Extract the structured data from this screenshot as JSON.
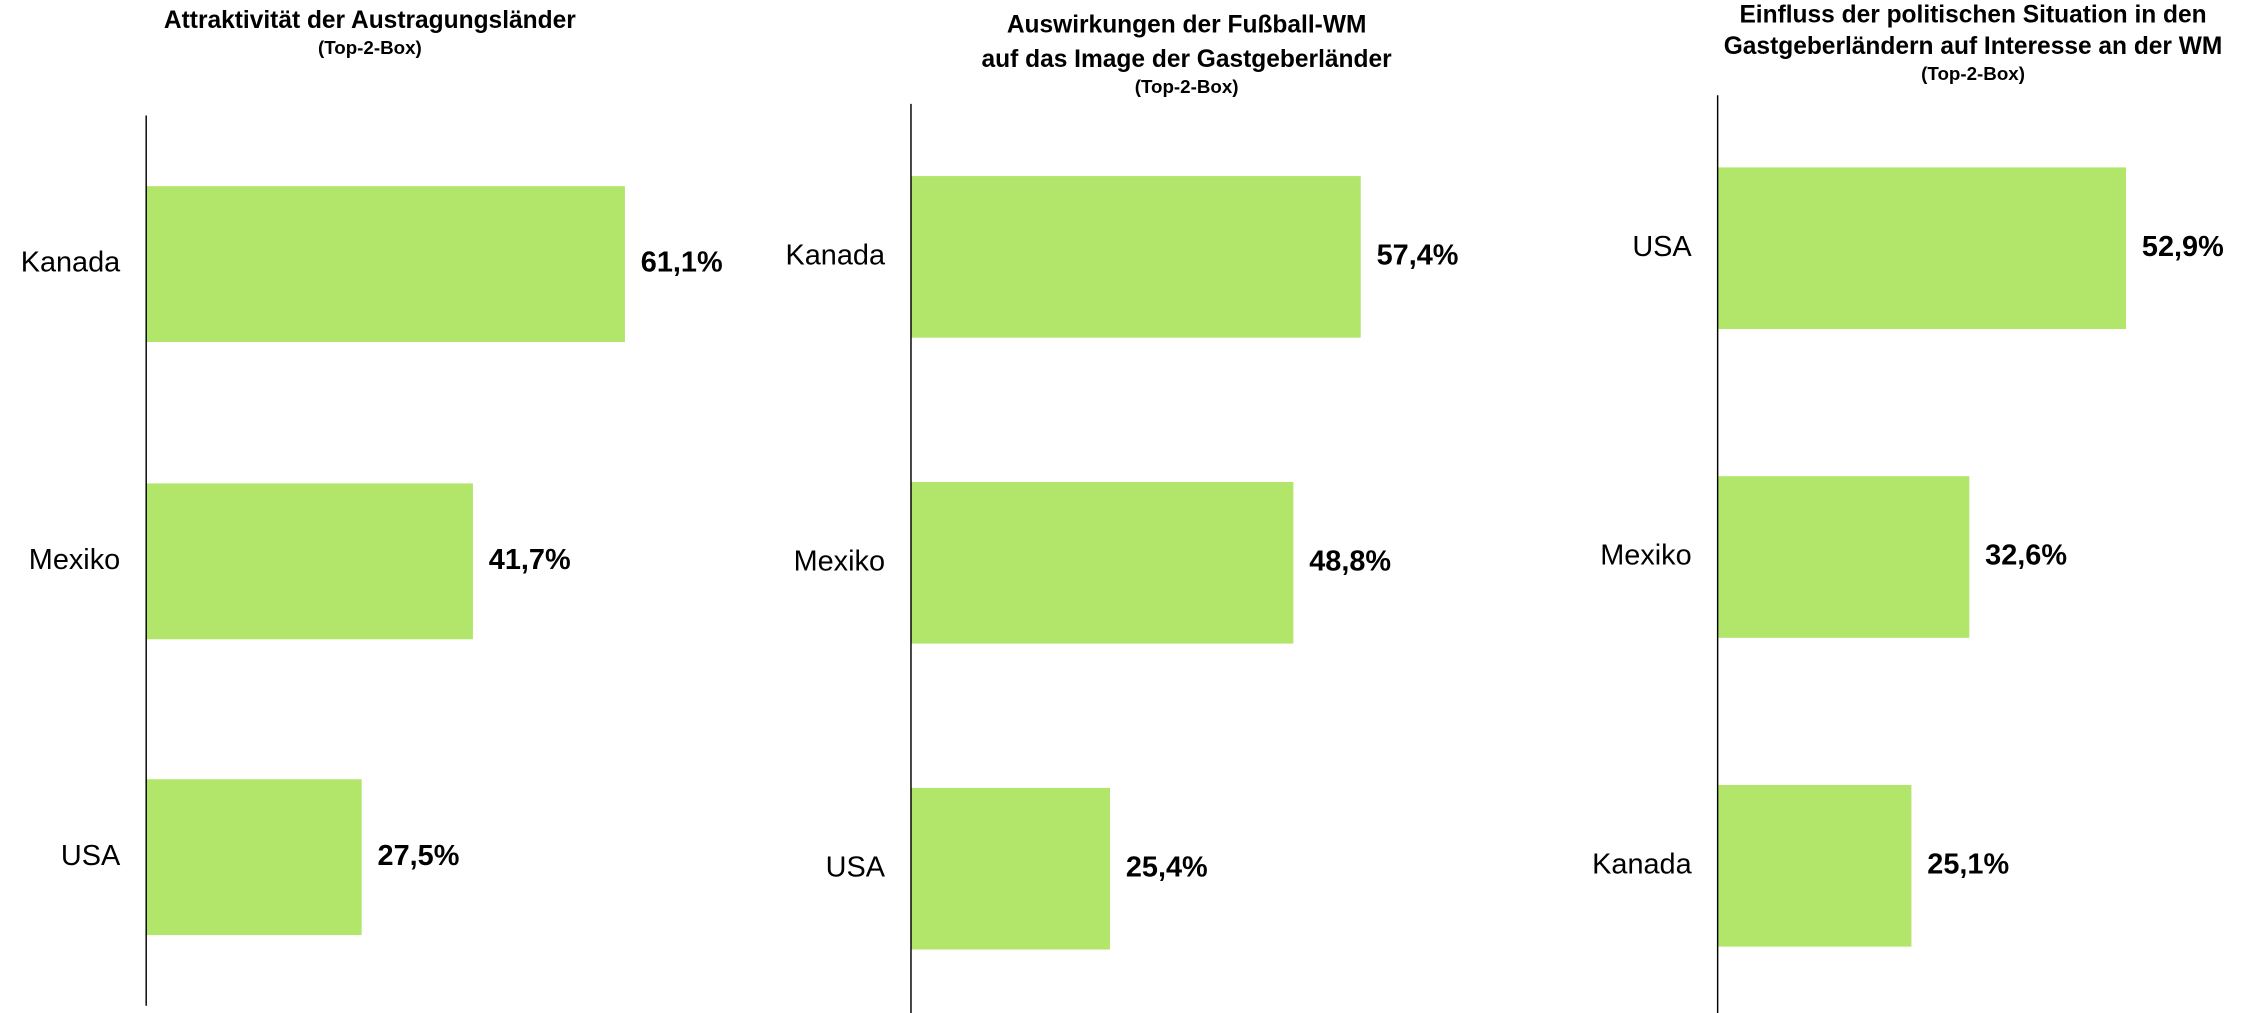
{
  "chart_data": [
    {
      "type": "bar",
      "orientation": "horizontal",
      "title": [
        "Attraktivität der Austragungsländer"
      ],
      "subtitle": "(Top-2-Box)",
      "categories": [
        "Kanada",
        "Mexiko",
        "USA"
      ],
      "values": [
        61.1,
        41.7,
        27.5
      ],
      "value_labels": [
        "61,1%",
        "41,7%",
        "27,5%"
      ],
      "color": "#b2e66a"
    },
    {
      "type": "bar",
      "orientation": "horizontal",
      "title": [
        "Auswirkungen  der Fußball-WM",
        "auf das Image der Gastgeberländer"
      ],
      "subtitle": "(Top-2-Box)",
      "categories": [
        "Kanada",
        "Mexiko",
        "USA"
      ],
      "values": [
        57.4,
        48.8,
        25.4
      ],
      "value_labels": [
        "57,4%",
        "48,8%",
        "25,4%"
      ],
      "color": "#b2e66a"
    },
    {
      "type": "bar",
      "orientation": "horizontal",
      "title": [
        "Einfluss der politischen Situation in den",
        "Gastgeberländern auf Interesse an der WM"
      ],
      "subtitle": "(Top-2-Box)",
      "categories": [
        "USA",
        "Mexiko",
        "Kanada"
      ],
      "values": [
        52.9,
        32.6,
        25.1
      ],
      "value_labels": [
        "52,9%",
        "32,6%",
        "25,1%"
      ],
      "color": "#b2e66a"
    }
  ]
}
